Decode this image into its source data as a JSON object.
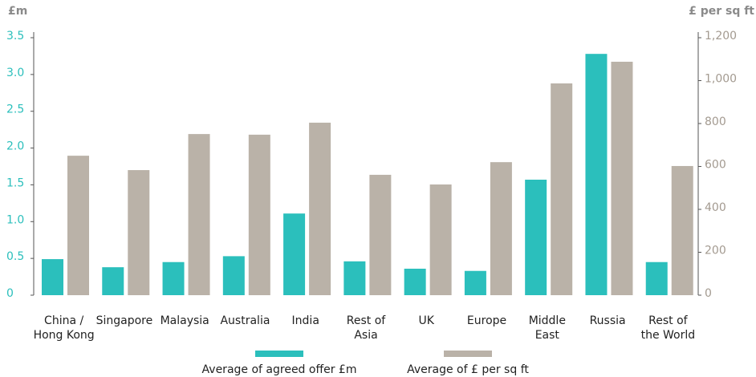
{
  "chart_data": {
    "type": "bar",
    "y_label": "£m",
    "y2_label": "£ per sq ft",
    "categories": [
      "China /\nHong Kong",
      "Singapore",
      "Malaysia",
      "Australia",
      "India",
      "Rest of\nAsia",
      "UK",
      "Europe",
      "Middle\nEast",
      "Russia",
      "Rest of\nthe World"
    ],
    "series": [
      {
        "name": "Average of agreed offer £m",
        "color": "#2bbfbc",
        "values": [
          0.49,
          0.38,
          0.45,
          0.53,
          1.11,
          0.46,
          0.36,
          0.33,
          1.57,
          3.28,
          0.45
        ]
      },
      {
        "name": "Average of £ per sq ft",
        "color": "#bab2a8",
        "axis": "y2",
        "values": [
          650,
          583,
          751,
          748,
          804,
          561,
          516,
          620,
          987,
          1088,
          602
        ]
      }
    ],
    "ylim": [
      0,
      3.5
    ],
    "yticks": [
      0,
      0.5,
      {
        "value": 1,
        "label": "1.0"
      },
      1.5,
      {
        "value": 2,
        "label": "2.0"
      },
      2.5,
      {
        "value": 3,
        "label": "3.0"
      },
      3.5
    ],
    "y2lim": [
      0,
      1200
    ],
    "y2ticks": [
      0,
      200,
      400,
      600,
      800,
      {
        "value": 1000,
        "label": "1,000"
      },
      {
        "value": 1200,
        "label": "1,200"
      }
    ]
  }
}
